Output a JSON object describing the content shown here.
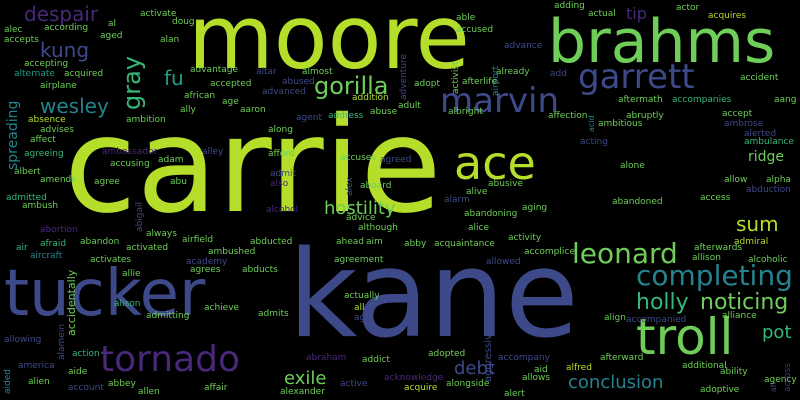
{
  "background": "#000000",
  "palette": {
    "lime": "#b5de2b",
    "green": "#6ece58",
    "teal": "#35b779",
    "cyan": "#1f9e89",
    "blue": "#26828e",
    "slate": "#3e4989",
    "indigo": "#482878",
    "purple": "#440154",
    "olive": "#a0da39"
  },
  "words": [
    {
      "text": "carrie",
      "color": "lime",
      "rotate": false
    },
    {
      "text": "kane",
      "color": "slate",
      "rotate": false
    },
    {
      "text": "moore",
      "color": "lime",
      "rotate": false
    },
    {
      "text": "tucker",
      "color": "slate",
      "rotate": false
    },
    {
      "text": "brahms",
      "color": "green",
      "rotate": false
    },
    {
      "text": "troll",
      "color": "green",
      "rotate": false
    },
    {
      "text": "ace",
      "color": "lime",
      "rotate": false
    },
    {
      "text": "tornado",
      "color": "indigo",
      "rotate": false
    },
    {
      "text": "marvin",
      "color": "slate",
      "rotate": false
    },
    {
      "text": "garrett",
      "color": "slate",
      "rotate": false
    },
    {
      "text": "leonard",
      "color": "green",
      "rotate": false
    },
    {
      "text": "completing",
      "color": "blue",
      "rotate": false
    },
    {
      "text": "gray",
      "color": "teal",
      "rotate": true
    },
    {
      "text": "gorilla",
      "color": "green",
      "rotate": false
    },
    {
      "text": "holly",
      "color": "teal",
      "rotate": false
    },
    {
      "text": "noticing",
      "color": "green",
      "rotate": false
    },
    {
      "text": "despair",
      "color": "indigo",
      "rotate": false
    },
    {
      "text": "kung",
      "color": "slate",
      "rotate": false
    },
    {
      "text": "wesley",
      "color": "blue",
      "rotate": false
    },
    {
      "text": "fu",
      "color": "cyan",
      "rotate": false
    },
    {
      "text": "sum",
      "color": "lime",
      "rotate": false
    },
    {
      "text": "hostility",
      "color": "green",
      "rotate": false
    },
    {
      "text": "conclusion",
      "color": "blue",
      "rotate": false
    },
    {
      "text": "exile",
      "color": "green",
      "rotate": false
    },
    {
      "text": "debt",
      "color": "slate",
      "rotate": false
    },
    {
      "text": "pot",
      "color": "teal",
      "rotate": false
    },
    {
      "text": "tip",
      "color": "indigo",
      "rotate": false
    },
    {
      "text": "ridge",
      "color": "green",
      "rotate": false
    },
    {
      "text": "airport",
      "color": "blue",
      "rotate": false
    },
    {
      "text": "spreading",
      "color": "blue",
      "rotate": true
    },
    {
      "text": "accidentally",
      "color": "green",
      "rotate": true
    },
    {
      "text": "adventure",
      "color": "slate",
      "rotate": true
    },
    {
      "text": "activist",
      "color": "green",
      "rotate": true
    },
    {
      "text": "aggressive",
      "color": "slate",
      "rotate": true
    },
    {
      "text": "abigail",
      "color": "slate",
      "rotate": true
    },
    {
      "text": "alcohol",
      "color": "indigo",
      "rotate": false
    },
    {
      "text": "ambassador",
      "color": "indigo",
      "rotate": false
    },
    {
      "text": "alex",
      "color": "slate",
      "rotate": true
    },
    {
      "text": "alamein",
      "color": "slate",
      "rotate": true
    },
    {
      "text": "aided",
      "color": "blue",
      "rotate": true
    },
    {
      "text": "acid",
      "color": "blue",
      "rotate": true
    },
    {
      "text": "ah",
      "color": "slate",
      "rotate": true
    },
    {
      "text": "across",
      "color": "indigo",
      "rotate": true
    },
    {
      "text": "afterlife",
      "color": "green",
      "rotate": false
    },
    {
      "text": "activate",
      "color": "green",
      "rotate": false
    },
    {
      "text": "according",
      "color": "green",
      "rotate": false
    },
    {
      "text": "alec",
      "color": "green",
      "rotate": false
    },
    {
      "text": "accepts",
      "color": "green",
      "rotate": false
    },
    {
      "text": "accepting",
      "color": "green",
      "rotate": false
    },
    {
      "text": "alternate",
      "color": "cyan",
      "rotate": false
    },
    {
      "text": "acquired",
      "color": "green",
      "rotate": false
    },
    {
      "text": "airplane",
      "color": "green",
      "rotate": false
    },
    {
      "text": "absence",
      "color": "lime",
      "rotate": false
    },
    {
      "text": "advises",
      "color": "green",
      "rotate": false
    },
    {
      "text": "affect",
      "color": "green",
      "rotate": false
    },
    {
      "text": "agreeing",
      "color": "teal",
      "rotate": false
    },
    {
      "text": "albert",
      "color": "green",
      "rotate": false
    },
    {
      "text": "amends",
      "color": "green",
      "rotate": false
    },
    {
      "text": "admitted",
      "color": "teal",
      "rotate": false
    },
    {
      "text": "ambush",
      "color": "green",
      "rotate": false
    },
    {
      "text": "abortion",
      "color": "indigo",
      "rotate": false
    },
    {
      "text": "air",
      "color": "teal",
      "rotate": false
    },
    {
      "text": "aircraft",
      "color": "blue",
      "rotate": false
    },
    {
      "text": "afraid",
      "color": "teal",
      "rotate": false
    },
    {
      "text": "abandon",
      "color": "green",
      "rotate": false
    },
    {
      "text": "activated",
      "color": "green",
      "rotate": false
    },
    {
      "text": "activates",
      "color": "green",
      "rotate": false
    },
    {
      "text": "allie",
      "color": "green",
      "rotate": false
    },
    {
      "text": "alison",
      "color": "teal",
      "rotate": false
    },
    {
      "text": "allowing",
      "color": "slate",
      "rotate": false
    },
    {
      "text": "america",
      "color": "slate",
      "rotate": false
    },
    {
      "text": "alien",
      "color": "green",
      "rotate": false
    },
    {
      "text": "aide",
      "color": "green",
      "rotate": false
    },
    {
      "text": "action",
      "color": "teal",
      "rotate": false
    },
    {
      "text": "account",
      "color": "slate",
      "rotate": false
    },
    {
      "text": "abbey",
      "color": "green",
      "rotate": false
    },
    {
      "text": "allen",
      "color": "green",
      "rotate": false
    },
    {
      "text": "affair",
      "color": "green",
      "rotate": false
    },
    {
      "text": "alexander",
      "color": "green",
      "rotate": false
    },
    {
      "text": "active",
      "color": "slate",
      "rotate": false
    },
    {
      "text": "acknowledge",
      "color": "indigo",
      "rotate": false
    },
    {
      "text": "acquire",
      "color": "lime",
      "rotate": false
    },
    {
      "text": "alongside",
      "color": "green",
      "rotate": false
    },
    {
      "text": "alert",
      "color": "green",
      "rotate": false
    },
    {
      "text": "allows",
      "color": "green",
      "rotate": false
    },
    {
      "text": "alfred",
      "color": "lime",
      "rotate": false
    },
    {
      "text": "aid",
      "color": "green",
      "rotate": false
    },
    {
      "text": "adopted",
      "color": "green",
      "rotate": false
    },
    {
      "text": "accompany",
      "color": "slate",
      "rotate": false
    },
    {
      "text": "afterward",
      "color": "green",
      "rotate": false
    },
    {
      "text": "additional",
      "color": "green",
      "rotate": false
    },
    {
      "text": "adoptive",
      "color": "green",
      "rotate": false
    },
    {
      "text": "agency",
      "color": "green",
      "rotate": false
    },
    {
      "text": "ability",
      "color": "green",
      "rotate": false
    },
    {
      "text": "alliance",
      "color": "green",
      "rotate": false
    },
    {
      "text": "accompanied",
      "color": "slate",
      "rotate": false
    },
    {
      "text": "align",
      "color": "green",
      "rotate": false
    },
    {
      "text": "admiral",
      "color": "lime",
      "rotate": false
    },
    {
      "text": "allison",
      "color": "green",
      "rotate": false
    },
    {
      "text": "afterwards",
      "color": "green",
      "rotate": false
    },
    {
      "text": "alcoholic",
      "color": "green",
      "rotate": false
    },
    {
      "text": "access",
      "color": "green",
      "rotate": false
    },
    {
      "text": "abduction",
      "color": "slate",
      "rotate": false
    },
    {
      "text": "alpha",
      "color": "green",
      "rotate": false
    },
    {
      "text": "allow",
      "color": "green",
      "rotate": false
    },
    {
      "text": "ambulance",
      "color": "teal",
      "rotate": false
    },
    {
      "text": "alerted",
      "color": "slate",
      "rotate": false
    },
    {
      "text": "ambrose",
      "color": "slate",
      "rotate": false
    },
    {
      "text": "accept",
      "color": "green",
      "rotate": false
    },
    {
      "text": "aang",
      "color": "green",
      "rotate": false
    },
    {
      "text": "accident",
      "color": "green",
      "rotate": false
    },
    {
      "text": "acquires",
      "color": "lime",
      "rotate": false
    },
    {
      "text": "actor",
      "color": "green",
      "rotate": false
    },
    {
      "text": "actual",
      "color": "green",
      "rotate": false
    },
    {
      "text": "adding",
      "color": "green",
      "rotate": false
    },
    {
      "text": "able",
      "color": "green",
      "rotate": false
    },
    {
      "text": "accused",
      "color": "green",
      "rotate": false
    },
    {
      "text": "advance",
      "color": "slate",
      "rotate": false
    },
    {
      "text": "already",
      "color": "green",
      "rotate": false
    },
    {
      "text": "add",
      "color": "slate",
      "rotate": false
    },
    {
      "text": "adopt",
      "color": "green",
      "rotate": false
    },
    {
      "text": "aftermath",
      "color": "green",
      "rotate": false
    },
    {
      "text": "accompanies",
      "color": "teal",
      "rotate": false
    },
    {
      "text": "abruptly",
      "color": "green",
      "rotate": false
    },
    {
      "text": "ambitious",
      "color": "green",
      "rotate": false
    },
    {
      "text": "affection",
      "color": "green",
      "rotate": false
    },
    {
      "text": "albright",
      "color": "green",
      "rotate": false
    },
    {
      "text": "adult",
      "color": "green",
      "rotate": false
    },
    {
      "text": "abuse",
      "color": "green",
      "rotate": false
    },
    {
      "text": "address",
      "color": "teal",
      "rotate": false
    },
    {
      "text": "addition",
      "color": "lime",
      "rotate": false
    },
    {
      "text": "almost",
      "color": "green",
      "rotate": false
    },
    {
      "text": "abused",
      "color": "slate",
      "rotate": false
    },
    {
      "text": "altar",
      "color": "slate",
      "rotate": false
    },
    {
      "text": "advantage",
      "color": "green",
      "rotate": false
    },
    {
      "text": "accepted",
      "color": "green",
      "rotate": false
    },
    {
      "text": "african",
      "color": "green",
      "rotate": false
    },
    {
      "text": "advanced",
      "color": "slate",
      "rotate": false
    },
    {
      "text": "aaron",
      "color": "green",
      "rotate": false
    },
    {
      "text": "age",
      "color": "green",
      "rotate": false
    },
    {
      "text": "ally",
      "color": "green",
      "rotate": false
    },
    {
      "text": "agent",
      "color": "slate",
      "rotate": false
    },
    {
      "text": "ambition",
      "color": "green",
      "rotate": false
    },
    {
      "text": "along",
      "color": "green",
      "rotate": false
    },
    {
      "text": "afford",
      "color": "green",
      "rotate": false
    },
    {
      "text": "alley",
      "color": "slate",
      "rotate": false
    },
    {
      "text": "adam",
      "color": "green",
      "rotate": false
    },
    {
      "text": "accusing",
      "color": "green",
      "rotate": false
    },
    {
      "text": "agree",
      "color": "green",
      "rotate": false
    },
    {
      "text": "abu",
      "color": "green",
      "rotate": false
    },
    {
      "text": "admit",
      "color": "slate",
      "rotate": false
    },
    {
      "text": "also",
      "color": "indigo",
      "rotate": false
    },
    {
      "text": "accuses",
      "color": "green",
      "rotate": false
    },
    {
      "text": "agreed",
      "color": "slate",
      "rotate": false
    },
    {
      "text": "aboard",
      "color": "green",
      "rotate": false
    },
    {
      "text": "abusive",
      "color": "green",
      "rotate": false
    },
    {
      "text": "alive",
      "color": "green",
      "rotate": false
    },
    {
      "text": "alarm",
      "color": "slate",
      "rotate": false
    },
    {
      "text": "advice",
      "color": "green",
      "rotate": false
    },
    {
      "text": "although",
      "color": "green",
      "rotate": false
    },
    {
      "text": "abandoning",
      "color": "green",
      "rotate": false
    },
    {
      "text": "alice",
      "color": "green",
      "rotate": false
    },
    {
      "text": "aging",
      "color": "green",
      "rotate": false
    },
    {
      "text": "abandoned",
      "color": "green",
      "rotate": false
    },
    {
      "text": "alone",
      "color": "green",
      "rotate": false
    },
    {
      "text": "acting",
      "color": "slate",
      "rotate": false
    },
    {
      "text": "always",
      "color": "green",
      "rotate": false
    },
    {
      "text": "airfield",
      "color": "green",
      "rotate": false
    },
    {
      "text": "abducted",
      "color": "green",
      "rotate": false
    },
    {
      "text": "ahead",
      "color": "green",
      "rotate": false
    },
    {
      "text": "aim",
      "color": "green",
      "rotate": false
    },
    {
      "text": "abby",
      "color": "green",
      "rotate": false
    },
    {
      "text": "acquaintance",
      "color": "green",
      "rotate": false
    },
    {
      "text": "activity",
      "color": "green",
      "rotate": false
    },
    {
      "text": "accomplice",
      "color": "green",
      "rotate": false
    },
    {
      "text": "ambushed",
      "color": "green",
      "rotate": false
    },
    {
      "text": "academy",
      "color": "slate",
      "rotate": false
    },
    {
      "text": "agreement",
      "color": "green",
      "rotate": false
    },
    {
      "text": "agrees",
      "color": "green",
      "rotate": false
    },
    {
      "text": "abducts",
      "color": "green",
      "rotate": false
    },
    {
      "text": "allowed",
      "color": "slate",
      "rotate": false
    },
    {
      "text": "admitting",
      "color": "green",
      "rotate": false
    },
    {
      "text": "achieve",
      "color": "green",
      "rotate": false
    },
    {
      "text": "admits",
      "color": "green",
      "rotate": false
    },
    {
      "text": "actually",
      "color": "green",
      "rotate": false
    },
    {
      "text": "all",
      "color": "lime",
      "rotate": false
    },
    {
      "text": "ago",
      "color": "slate",
      "rotate": false
    },
    {
      "text": "abraham",
      "color": "indigo",
      "rotate": false
    },
    {
      "text": "addict",
      "color": "green",
      "rotate": false
    },
    {
      "text": "al",
      "color": "green",
      "rotate": false
    },
    {
      "text": "doug",
      "color": "green",
      "rotate": false
    },
    {
      "text": "alan",
      "color": "green",
      "rotate": false
    },
    {
      "text": "aged",
      "color": "green",
      "rotate": false
    }
  ]
}
